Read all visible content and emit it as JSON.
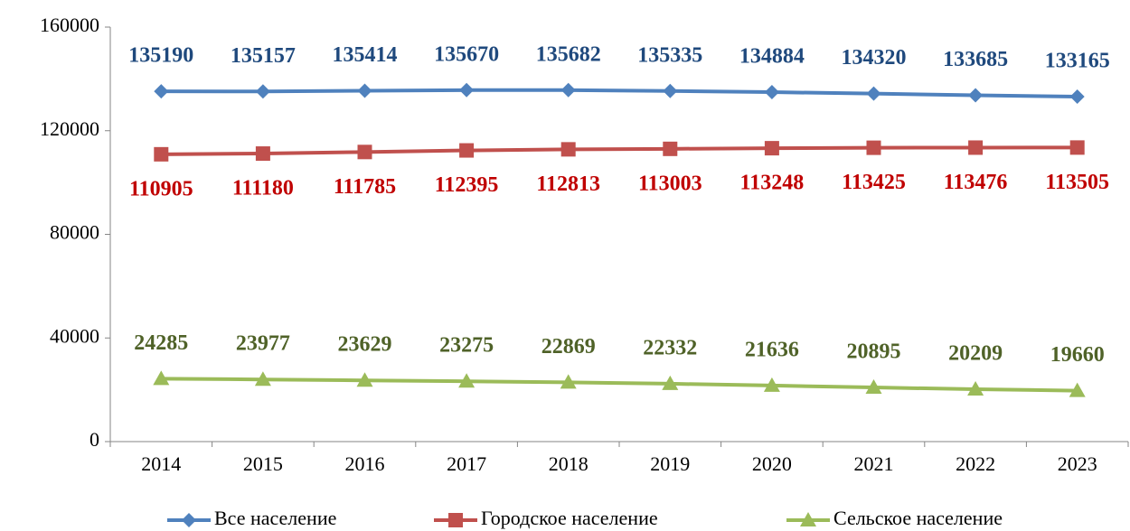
{
  "chart_data": {
    "type": "line",
    "categories": [
      "2014",
      "2015",
      "2016",
      "2017",
      "2018",
      "2019",
      "2020",
      "2021",
      "2022",
      "2023"
    ],
    "series": [
      {
        "name": "Все население",
        "color": "#4f81bd",
        "label_color": "#1f497d",
        "marker": "diamond",
        "label_position": "above",
        "values": [
          135190,
          135157,
          135414,
          135670,
          135682,
          135335,
          134884,
          134320,
          133685,
          133165
        ]
      },
      {
        "name": "Городское население",
        "color": "#c0504d",
        "label_color": "#c00000",
        "marker": "square",
        "label_position": "below",
        "values": [
          110905,
          111180,
          111785,
          112395,
          112813,
          113003,
          113248,
          113425,
          113476,
          113505
        ]
      },
      {
        "name": "Сельское население",
        "color": "#9bbb59",
        "label_color": "#4f6228",
        "marker": "triangle",
        "label_position": "above",
        "values": [
          24285,
          23977,
          23629,
          23275,
          22869,
          22332,
          21636,
          20895,
          20209,
          19660
        ]
      }
    ],
    "ylim": [
      0,
      160000
    ],
    "yticks": [
      0,
      40000,
      80000,
      120000,
      160000
    ],
    "grid": false,
    "legend": "bottom"
  }
}
